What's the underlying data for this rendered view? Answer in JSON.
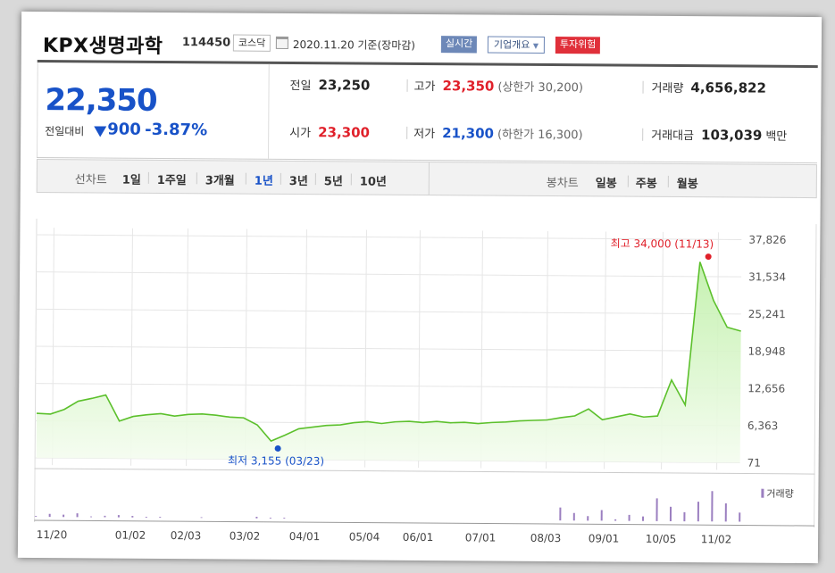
{
  "header": {
    "company_name": "KPX생명과학",
    "stock_code": "114450",
    "market_tag": "코스닥",
    "date_text": "2020.11.20  기준(장마감)",
    "realtime_label": "실시간",
    "corp_info_label": "기업개요",
    "risk_label": "투자위험"
  },
  "quote": {
    "price": "22,350",
    "change_label": "전일대비",
    "change_value": "900",
    "change_pct": "-3.87%",
    "prev_close": {
      "label": "전일",
      "value": "23,250"
    },
    "open": {
      "label": "시가",
      "value": "23,300"
    },
    "high": {
      "label": "고가",
      "value": "23,350",
      "sub": "(상한가 30,200)"
    },
    "low": {
      "label": "저가",
      "value": "21,300",
      "sub": "(하한가 16,300)"
    },
    "volume": {
      "label": "거래량",
      "value": "4,656,822"
    },
    "trade_value": {
      "label": "거래대금",
      "value": "103,039",
      "unit": "백만"
    }
  },
  "period_bar": {
    "line_chart_label": "선차트",
    "line_options": [
      "1일",
      "1주일",
      "3개월",
      "1년",
      "3년",
      "5년",
      "10년"
    ],
    "line_selected": "1년",
    "candle_chart_label": "봉차트",
    "candle_options": [
      "일봉",
      "주봉",
      "월봉"
    ]
  },
  "colors": {
    "up": "#e0202a",
    "down": "#1852c8",
    "line": "#5cc02c"
  },
  "chart_data": {
    "type": "area",
    "x_ticks": [
      "11/20",
      "01/02",
      "02/03",
      "03/02",
      "04/01",
      "05/04",
      "06/01",
      "07/01",
      "08/03",
      "09/01",
      "10/05",
      "11/02"
    ],
    "y_ticks": [
      "37,826",
      "31,534",
      "25,241",
      "18,948",
      "12,656",
      "6,363",
      "71"
    ],
    "ylim": [
      71,
      37826
    ],
    "max_annotation": "최고 34,000 (11/13)",
    "max_value": 34000,
    "max_index": 48.6,
    "min_annotation": "최저 3,155 (03/23)",
    "min_value": 3155,
    "min_index": 17.5,
    "price_series": [
      7600,
      7500,
      8300,
      9700,
      10200,
      10800,
      6400,
      7200,
      7500,
      7700,
      7300,
      7600,
      7700,
      7500,
      7200,
      7100,
      5900,
      3200,
      4200,
      5300,
      5600,
      5900,
      6000,
      6400,
      6600,
      6300,
      6600,
      6700,
      6500,
      6700,
      6500,
      6600,
      6400,
      6600,
      6700,
      6900,
      7000,
      7100,
      7500,
      7800,
      9000,
      7200,
      7700,
      8200,
      7700,
      7900,
      14000,
      9800,
      34000,
      27500,
      23000,
      22350
    ],
    "volume_label": "거래량",
    "volume_series": [
      1,
      4,
      3,
      5,
      1,
      2,
      3,
      2,
      1,
      1,
      0,
      0,
      1,
      0,
      0,
      0,
      2,
      1,
      1,
      0,
      0,
      0,
      0,
      0,
      0,
      0,
      0,
      0,
      0,
      0,
      0,
      0,
      0,
      0,
      0,
      0,
      0,
      0,
      17,
      10,
      6,
      14,
      2,
      8,
      6,
      30,
      19,
      12,
      26,
      40,
      24,
      12
    ],
    "grid": true
  }
}
